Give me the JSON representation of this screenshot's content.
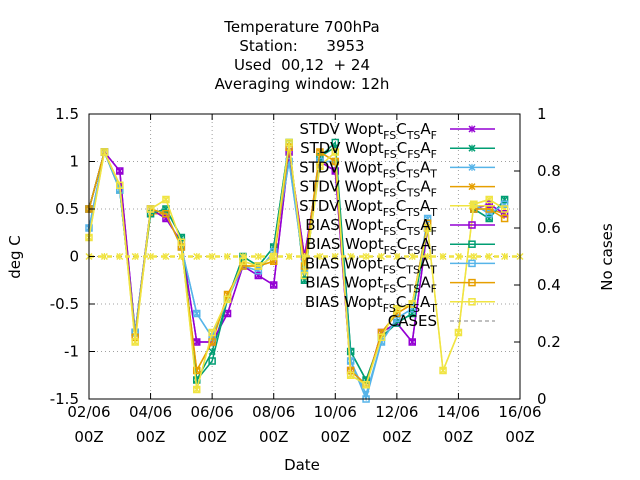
{
  "chart_data": {
    "type": "line",
    "title": [
      "Temperature 700hPa",
      "Station:      3953",
      "Used  00,12  + 24",
      "Averaging window: 12h"
    ],
    "xlabel": "Date",
    "ylabel": "deg C",
    "y2label": "No cases",
    "xlim": [
      0,
      14
    ],
    "ylim": [
      -1.5,
      1.5
    ],
    "y2lim": [
      0,
      1
    ],
    "xticks": [
      {
        "x": 0,
        "l1": "02/06",
        "l2": "00Z"
      },
      {
        "x": 2,
        "l1": "04/06",
        "l2": "00Z"
      },
      {
        "x": 4,
        "l1": "06/06",
        "l2": "00Z"
      },
      {
        "x": 6,
        "l1": "08/06",
        "l2": "00Z"
      },
      {
        "x": 8,
        "l1": "10/06",
        "l2": "00Z"
      },
      {
        "x": 10,
        "l1": "12/06",
        "l2": "00Z"
      },
      {
        "x": 12,
        "l1": "14/06",
        "l2": "00Z"
      },
      {
        "x": 14,
        "l1": "16/06",
        "l2": "00Z"
      }
    ],
    "yticks": [
      "1.5",
      "1",
      "0.5",
      "0",
      "-0.5",
      "-1",
      "-1.5"
    ],
    "y2ticks": [
      "1",
      "0.8",
      "0.6",
      "0.4",
      "0.2",
      "0"
    ],
    "x": [
      0,
      0.5,
      1,
      1.5,
      2,
      2.5,
      3,
      3.5,
      4,
      4.5,
      5,
      5.5,
      6,
      6.5,
      7,
      7.5,
      8,
      8.5,
      9,
      9.5,
      10,
      10.5,
      11,
      11.5,
      12,
      12.5,
      13,
      13.5
    ],
    "series": [
      {
        "name": "STDV Wopt FS C TS A F",
        "color": "#9400d3",
        "marker": "x",
        "kind": "stdv",
        "values": [
          0.5,
          1.1,
          0.9,
          -0.8,
          0.5,
          0.4,
          0.15,
          -0.9,
          -0.9,
          -0.6,
          -0.1,
          -0.2,
          -0.3,
          1.1,
          0.0,
          1.0,
          0.9,
          -1.2,
          -1.35,
          -0.8,
          -0.7,
          -0.9,
          0.3,
          null,
          null,
          0.5,
          0.55,
          0.45
        ]
      },
      {
        "name": "STDV Wopt FS C FS A F",
        "color": "#009e73",
        "marker": "x",
        "kind": "stdv",
        "values": [
          0.5,
          1.1,
          0.7,
          -0.8,
          0.45,
          0.5,
          0.2,
          -1.3,
          -1.0,
          -0.45,
          0.0,
          -0.1,
          0.1,
          1.2,
          -0.25,
          1.05,
          1.15,
          -1.0,
          -1.3,
          -0.85,
          -0.7,
          -0.6,
          0.3,
          null,
          null,
          0.5,
          0.4,
          0.6
        ]
      },
      {
        "name": "STDV Wopt FS C TS A T",
        "color": "#56b4e9",
        "marker": "x",
        "kind": "stdv",
        "values": [
          0.3,
          1.1,
          0.7,
          -0.8,
          0.5,
          0.45,
          0.1,
          -0.6,
          -0.85,
          -0.45,
          -0.1,
          -0.15,
          0.05,
          1.0,
          -0.15,
          1.0,
          1.0,
          -1.1,
          -1.45,
          -0.9,
          -0.65,
          -0.55,
          0.4,
          null,
          null,
          0.55,
          0.45,
          0.55
        ]
      },
      {
        "name": "STDV Wopt FS C TS A F",
        "color": "#e69f00",
        "marker": "x",
        "kind": "stdv",
        "values": [
          0.5,
          1.1,
          0.75,
          -0.85,
          0.45,
          0.45,
          0.1,
          -1.2,
          -0.9,
          -0.4,
          -0.1,
          -0.1,
          -0.05,
          1.15,
          -0.1,
          1.1,
          1.0,
          -1.2,
          -1.35,
          -0.8,
          -0.6,
          -0.5,
          0.35,
          null,
          null,
          0.5,
          0.5,
          0.45
        ]
      },
      {
        "name": "STDV Wopt FS C TS A T",
        "color": "#f0e442",
        "marker": "x",
        "kind": "stdv",
        "values": [
          0.2,
          1.1,
          0.75,
          -0.9,
          0.5,
          0.6,
          0.15,
          -1.4,
          -0.8,
          -0.45,
          -0.05,
          -0.1,
          0.0,
          1.2,
          -0.2,
          0.95,
          1.1,
          -1.25,
          -1.35,
          -0.85,
          -0.55,
          -0.5,
          0.3,
          -1.2,
          -0.8,
          0.55,
          0.6,
          0.5
        ]
      },
      {
        "name": "BIAS Wopt FS C TS A F",
        "color": "#9400d3",
        "marker": "sq",
        "kind": "bias",
        "values": [
          0.5,
          1.1,
          0.9,
          -0.8,
          0.5,
          0.4,
          0.15,
          -0.9,
          -0.9,
          -0.6,
          -0.1,
          -0.2,
          -0.3,
          1.1,
          0.0,
          1.0,
          0.9,
          -1.2,
          -1.35,
          -0.8,
          -0.7,
          -0.9,
          0.3,
          null,
          null,
          0.5,
          0.55,
          0.45
        ]
      },
      {
        "name": "BIAS Wopt FS C FS A F",
        "color": "#009e73",
        "marker": "sq",
        "kind": "bias",
        "values": [
          0.5,
          1.1,
          0.7,
          -0.8,
          0.45,
          0.5,
          0.2,
          -1.3,
          -1.1,
          -0.45,
          0.0,
          -0.1,
          0.1,
          1.2,
          -0.25,
          1.05,
          1.2,
          -1.0,
          -1.3,
          -0.85,
          -0.7,
          -0.6,
          0.3,
          null,
          null,
          0.5,
          0.4,
          0.6
        ]
      },
      {
        "name": "BIAS Wopt FS C TS A T",
        "color": "#56b4e9",
        "marker": "sq",
        "kind": "bias",
        "values": [
          0.3,
          1.1,
          0.7,
          -0.8,
          0.5,
          0.45,
          0.1,
          -0.6,
          -0.85,
          -0.45,
          -0.1,
          -0.15,
          0.05,
          1.0,
          -0.15,
          1.0,
          1.0,
          -1.1,
          -1.5,
          -0.9,
          -0.65,
          -0.55,
          0.4,
          null,
          null,
          0.55,
          0.45,
          0.55
        ]
      },
      {
        "name": "BIAS Wopt FS C TS A F",
        "color": "#e69f00",
        "marker": "sq",
        "kind": "bias",
        "values": [
          0.5,
          1.1,
          0.75,
          -0.85,
          0.5,
          0.45,
          0.1,
          -1.2,
          -0.9,
          -0.4,
          -0.1,
          -0.1,
          -0.05,
          1.15,
          -0.1,
          1.1,
          1.0,
          -1.2,
          -1.35,
          -0.8,
          -0.6,
          -0.5,
          0.35,
          null,
          null,
          0.5,
          0.5,
          0.4
        ]
      },
      {
        "name": "BIAS Wopt FS C TS A T",
        "color": "#f0e442",
        "marker": "sq",
        "kind": "bias",
        "values": [
          0.2,
          1.1,
          0.75,
          -0.9,
          0.5,
          0.6,
          0.15,
          -1.4,
          -0.8,
          -0.45,
          -0.05,
          -0.1,
          0.0,
          1.2,
          -0.2,
          0.95,
          1.1,
          -1.25,
          -1.35,
          -0.85,
          -0.55,
          -0.5,
          0.3,
          -1.2,
          -0.8,
          0.55,
          0.6,
          0.5
        ]
      }
    ],
    "cases": {
      "name": "CASES",
      "color": "#f0e442",
      "value": 0.5
    },
    "legend": [
      {
        "pre": "STDV Wopt",
        "sub1": "FS",
        "mid1": "C",
        "sub2": "TS",
        "mid2": "A",
        "sub3": "F",
        "color": "#9400d3",
        "marker": "x"
      },
      {
        "pre": "STDV Wopt",
        "sub1": "FS",
        "mid1": "C",
        "sub2": "FS",
        "mid2": "A",
        "sub3": "F",
        "color": "#009e73",
        "marker": "x"
      },
      {
        "pre": "STDV Wopt",
        "sub1": "FS",
        "mid1": "C",
        "sub2": "TS",
        "mid2": "A",
        "sub3": "T",
        "color": "#56b4e9",
        "marker": "x"
      },
      {
        "pre": "STDV Wopt",
        "sub1": "FS",
        "mid1": "C",
        "sub2": "TS",
        "mid2": "A",
        "sub3": "F",
        "color": "#e69f00",
        "marker": "x"
      },
      {
        "pre": "STDV Wopt",
        "sub1": "FS",
        "mid1": "C",
        "sub2": "TS",
        "mid2": "A",
        "sub3": "T",
        "color": "#f0e442",
        "marker": "x"
      },
      {
        "pre": "BIAS Wopt",
        "sub1": "FS",
        "mid1": "C",
        "sub2": "TS",
        "mid2": "A",
        "sub3": "F",
        "color": "#9400d3",
        "marker": "sq"
      },
      {
        "pre": "BIAS Wopt",
        "sub1": "FS",
        "mid1": "C",
        "sub2": "FS",
        "mid2": "A",
        "sub3": "F",
        "color": "#009e73",
        "marker": "sq"
      },
      {
        "pre": "BIAS Wopt",
        "sub1": "FS",
        "mid1": "C",
        "sub2": "TS",
        "mid2": "A",
        "sub3": "T",
        "color": "#56b4e9",
        "marker": "sq"
      },
      {
        "pre": "BIAS Wopt",
        "sub1": "FS",
        "mid1": "C",
        "sub2": "TS",
        "mid2": "A",
        "sub3": "F",
        "color": "#e69f00",
        "marker": "sq"
      },
      {
        "pre": "BIAS Wopt",
        "sub1": "FS",
        "mid1": "C",
        "sub2": "TS",
        "mid2": "A",
        "sub3": "T",
        "color": "#f0e442",
        "marker": "sq"
      },
      {
        "pre": "CASES",
        "color": "#808080",
        "marker": "dash"
      }
    ]
  }
}
